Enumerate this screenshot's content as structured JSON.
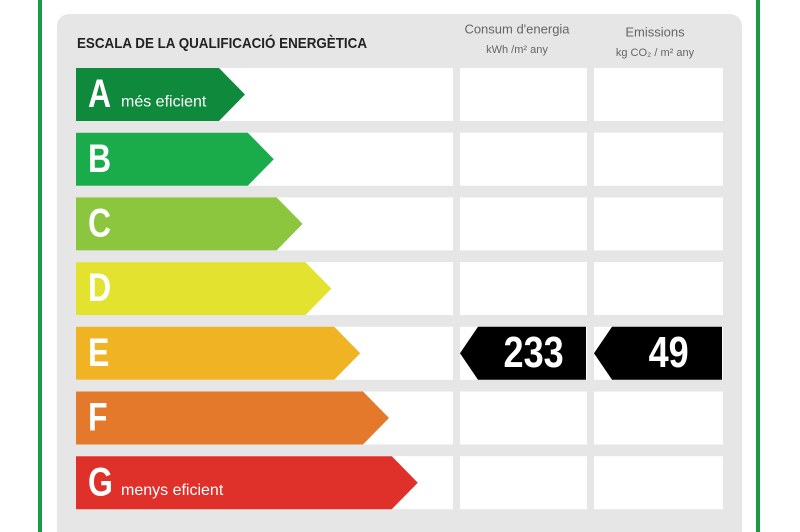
{
  "title": "ESCALA DE LA QUALIFICACIÓ ENERGÈTICA",
  "columns": [
    {
      "title": "Consum d'energia",
      "unit": "kWh /m² any"
    },
    {
      "title": "Emissions",
      "unit": "kg CO₂ / m² any"
    }
  ],
  "rows": [
    {
      "letter": "A",
      "note": "més eficient",
      "color": "#0f8a3c"
    },
    {
      "letter": "B",
      "color": "#1aab4b"
    },
    {
      "letter": "C",
      "color": "#8cc63f"
    },
    {
      "letter": "D",
      "color": "#e3e22f"
    },
    {
      "letter": "E",
      "color": "#f0b323",
      "values": [
        233,
        49
      ]
    },
    {
      "letter": "F",
      "color": "#e5792b"
    },
    {
      "letter": "G",
      "note": "menys eficient",
      "color": "#e0302a"
    }
  ]
}
